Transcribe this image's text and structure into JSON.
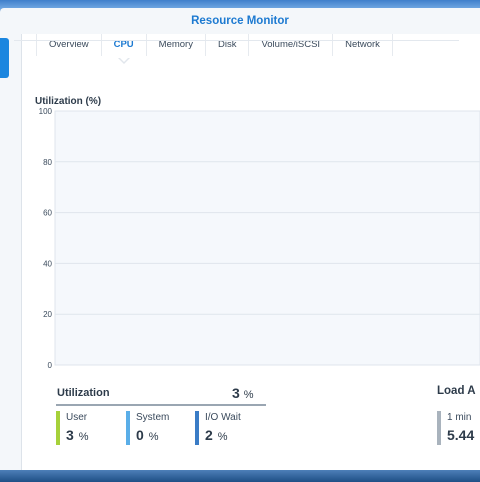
{
  "window": {
    "title": "Resource Monitor"
  },
  "tabs": [
    {
      "label": "Overview",
      "active": false
    },
    {
      "label": "CPU",
      "active": true
    },
    {
      "label": "Memory",
      "active": false
    },
    {
      "label": "Disk",
      "active": false
    },
    {
      "label": "Volume/iSCSI",
      "active": false
    },
    {
      "label": "Network",
      "active": false
    }
  ],
  "chart": {
    "title": "Utilization (%)"
  },
  "chart_data": {
    "type": "line",
    "title": "Utilization (%)",
    "ylim": [
      0,
      100
    ],
    "yticks": [
      0,
      20,
      40,
      60,
      80,
      100
    ],
    "grid": true,
    "series": []
  },
  "utilization": {
    "title": "Utilization",
    "total_value": "3",
    "total_unit": "%",
    "metrics": [
      {
        "label": "User",
        "value": "3",
        "unit": "%",
        "color": "#a6d13a"
      },
      {
        "label": "System",
        "value": "0",
        "unit": "%",
        "color": "#5aaee8"
      },
      {
        "label": "I/O Wait",
        "value": "2",
        "unit": "%",
        "color": "#3a7cc6"
      }
    ]
  },
  "load_average": {
    "title": "Load A",
    "label": "1 min",
    "value": "5.44",
    "color": "#a9b3bd"
  },
  "colors": {
    "accent": "#1d7ad1",
    "chart_bg": "#f5f8fc",
    "grid": "#dfe5ec"
  }
}
